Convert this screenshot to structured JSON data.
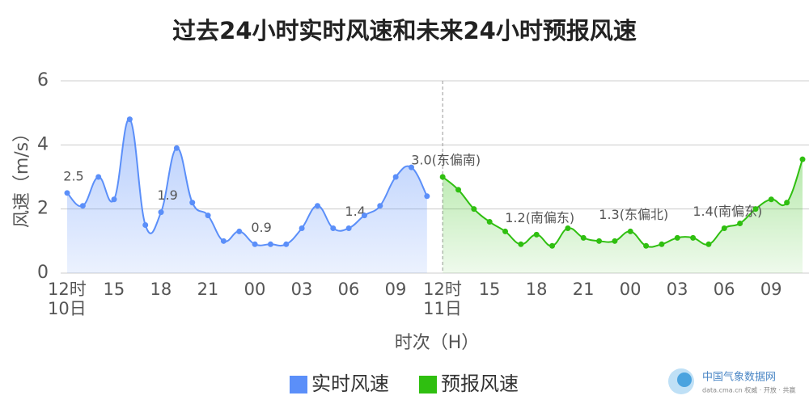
{
  "chart_data": {
    "type": "line",
    "title": "过去24小时实时风速和未来24小时预报风速",
    "x_label": "时次（H）",
    "y_label": "风速（m/s）",
    "categories": [
      "12时\n10日",
      null,
      null,
      "15",
      null,
      null,
      "18",
      null,
      null,
      "21",
      null,
      null,
      "00",
      null,
      null,
      "03",
      null,
      null,
      "06",
      null,
      null,
      "09",
      null,
      null,
      "12时\n11日",
      null,
      null,
      "15",
      null,
      null,
      "18",
      null,
      null,
      "21",
      null,
      null,
      "00",
      null,
      null,
      "03",
      null,
      null,
      "06",
      null,
      null,
      "09",
      null,
      null
    ],
    "ylim": [
      0,
      6
    ],
    "yticks": [
      0,
      2,
      4,
      6
    ],
    "grid": true,
    "series": [
      {
        "name": "实时风速",
        "color": "#5b8ff9",
        "values": [
          2.5,
          2.1,
          3.0,
          2.3,
          4.8,
          1.5,
          1.9,
          3.9,
          2.2,
          1.8,
          1.0,
          1.3,
          0.9,
          0.9,
          0.9,
          1.4,
          2.1,
          1.4,
          1.4,
          1.8,
          2.1,
          3.0,
          3.3,
          2.4,
          null,
          null,
          null,
          null,
          null,
          null,
          null,
          null,
          null,
          null,
          null,
          null,
          null,
          null,
          null,
          null,
          null,
          null,
          null,
          null,
          null,
          null,
          null,
          null
        ],
        "value_labels": [
          "2.5",
          null,
          null,
          null,
          null,
          null,
          "1.9",
          null,
          null,
          null,
          null,
          null,
          "0.9",
          null,
          null,
          null,
          null,
          null,
          "1.4",
          null,
          null,
          null,
          null,
          null,
          null,
          null,
          null,
          null,
          null,
          null,
          null,
          null,
          null,
          null,
          null,
          null,
          null,
          null,
          null,
          null,
          null,
          null,
          null,
          null,
          null,
          null,
          null,
          null
        ]
      },
      {
        "name": "预报风速",
        "color": "#2fbf10",
        "values": [
          null,
          null,
          null,
          null,
          null,
          null,
          null,
          null,
          null,
          null,
          null,
          null,
          null,
          null,
          null,
          null,
          null,
          null,
          null,
          null,
          null,
          null,
          null,
          null,
          3.0,
          2.6,
          2.0,
          1.6,
          1.3,
          0.9,
          1.2,
          0.85,
          1.4,
          1.1,
          1.0,
          1.0,
          1.3,
          0.85,
          0.9,
          1.1,
          1.1,
          0.9,
          1.4,
          1.55,
          2.0,
          2.3,
          2.2,
          3.55
        ],
        "value_labels": [
          null,
          null,
          null,
          null,
          null,
          null,
          null,
          null,
          null,
          null,
          null,
          null,
          null,
          null,
          null,
          null,
          null,
          null,
          null,
          null,
          null,
          null,
          null,
          null,
          "3.0(东偏南)",
          null,
          null,
          null,
          null,
          null,
          "1.2(南偏东)",
          null,
          null,
          null,
          null,
          null,
          "1.3(东偏北)",
          null,
          null,
          null,
          null,
          null,
          "1.4(南偏东)",
          null,
          null,
          null,
          null,
          null
        ]
      }
    ]
  },
  "branding": {
    "name": "中国气象数据网",
    "tagline": "data.cma.cn 权威 · 开放 · 共赢"
  }
}
